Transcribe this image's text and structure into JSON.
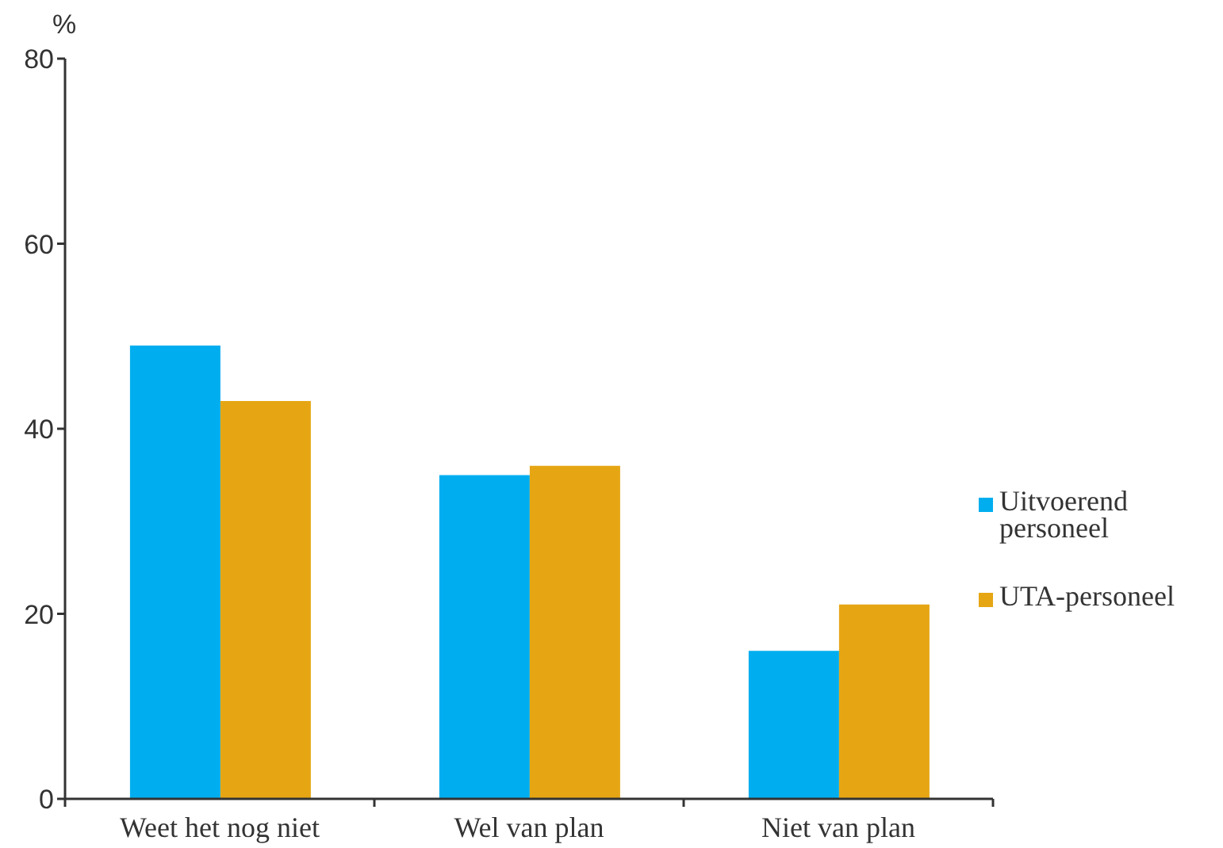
{
  "chart_data": {
    "type": "bar",
    "ylabel": "%",
    "categories": [
      "Weet het nog niet",
      "Wel van plan",
      "Niet van plan"
    ],
    "series": [
      {
        "name": "Uitvoerend personeel",
        "color": "#00aeef",
        "values": [
          49,
          35,
          16
        ]
      },
      {
        "name": "UTA-personeel",
        "color": "#e6a614",
        "values": [
          43,
          36,
          21
        ]
      }
    ],
    "ylim": [
      0,
      80
    ],
    "yticks": [
      0,
      20,
      40,
      60,
      80
    ],
    "legend": "right"
  }
}
